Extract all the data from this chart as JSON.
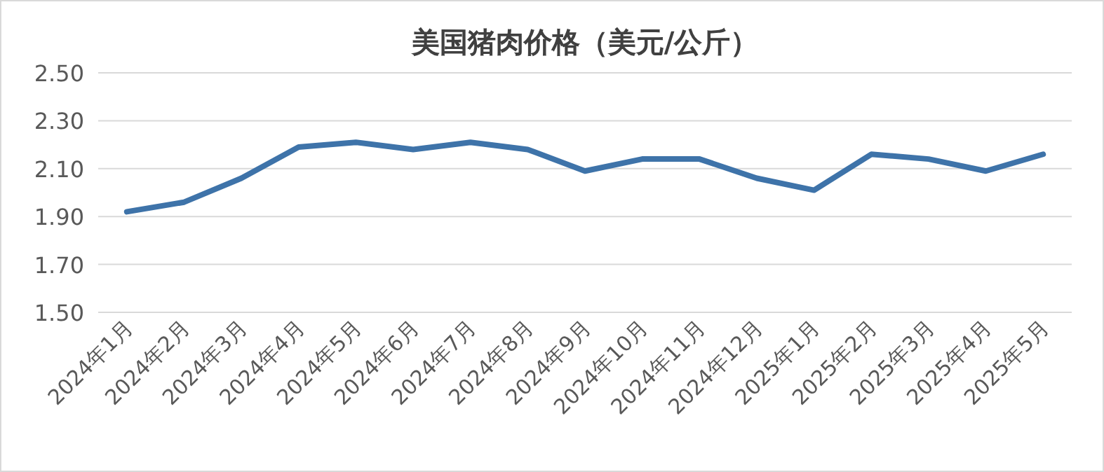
{
  "chart_data": {
    "type": "line",
    "title": "美国猪肉价格（美元/公斤）",
    "categories": [
      "2024年1月",
      "2024年2月",
      "2024年3月",
      "2024年4月",
      "2024年5月",
      "2024年6月",
      "2024年7月",
      "2024年8月",
      "2024年9月",
      "2024年10月",
      "2024年11月",
      "2024年12月",
      "2025年1月",
      "2025年2月",
      "2025年3月",
      "2025年4月",
      "2025年5月"
    ],
    "series": [
      {
        "color": "#3e73a9",
        "values": [
          1.92,
          1.96,
          2.06,
          2.19,
          2.21,
          2.18,
          2.21,
          2.18,
          2.09,
          2.14,
          2.14,
          2.06,
          2.01,
          2.16,
          2.14,
          2.09,
          2.16
        ]
      }
    ],
    "ylim": [
      1.5,
      2.5
    ],
    "yticks": [
      {
        "value": 1.5,
        "label": "1.50"
      },
      {
        "value": 1.7,
        "label": "1.70"
      },
      {
        "value": 1.9,
        "label": "1.90"
      },
      {
        "value": 2.1,
        "label": "2.10"
      },
      {
        "value": 2.3,
        "label": "2.30"
      },
      {
        "value": 2.5,
        "label": "2.50"
      }
    ],
    "grid": "y"
  }
}
